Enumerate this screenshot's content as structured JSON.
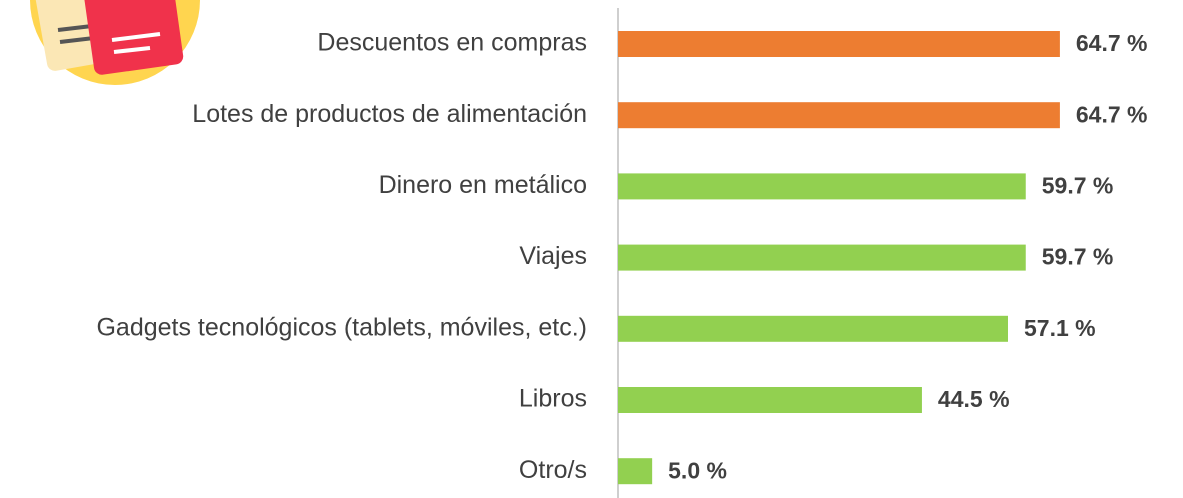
{
  "chart_data": {
    "type": "bar",
    "orientation": "horizontal",
    "categories": [
      "Descuentos en compras",
      "Lotes de productos de alimentación",
      "Dinero en metálico",
      "Viajes",
      "Gadgets tecnológicos (tablets, móviles, etc.)",
      "Libros",
      "Otro/s"
    ],
    "values": [
      64.7,
      64.7,
      59.7,
      59.7,
      57.1,
      44.5,
      5.0
    ],
    "value_labels": [
      "64.7 %",
      "64.7 %",
      "59.7 %",
      "59.7 %",
      "57.1 %",
      "44.5 %",
      "5.0 %"
    ],
    "colors": [
      "#ED7D31",
      "#ED7D31",
      "#92D050",
      "#92D050",
      "#92D050",
      "#92D050",
      "#92D050"
    ]
  }
}
